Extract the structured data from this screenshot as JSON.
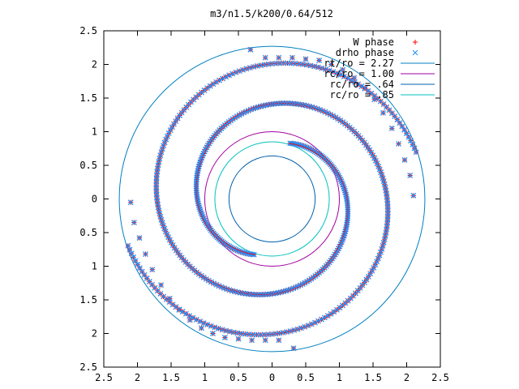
{
  "chart_data": {
    "type": "scatter",
    "title": "m3/n1.5/k200/0.64/512",
    "xlim": [
      -2.5,
      2.5
    ],
    "ylim": [
      -2.5,
      2.5
    ],
    "x_ticks": [
      -2.5,
      -2,
      -1.5,
      -1,
      -0.5,
      0,
      0.5,
      1,
      1.5,
      2,
      2.5
    ],
    "x_tick_labels": [
      "2.5",
      "2",
      "1.5",
      "1",
      "0.5",
      "0",
      "0.5",
      "1",
      "1.5",
      "2",
      "2.5"
    ],
    "y_ticks": [
      2.5,
      2,
      1.5,
      1,
      0.5,
      0,
      -0.5,
      -1,
      -1.5,
      -2,
      -2.5
    ],
    "y_tick_labels": [
      "2.5",
      "2",
      "1.5",
      "1",
      "0.5",
      "0",
      "0.5",
      "1",
      "1.5",
      "2",
      "2.5"
    ],
    "grid": false,
    "legend_position": "top-right",
    "series": [
      {
        "name": "W phase",
        "kind": "points",
        "marker": "plus",
        "color": "#ff0000",
        "spirals": [
          {
            "start_r": 0.87,
            "end_r": 2.25,
            "theta_start_deg": 72,
            "turns": 1.15
          },
          {
            "start_r": 0.87,
            "end_r": 2.25,
            "theta_start_deg": 252,
            "turns": 1.15
          }
        ],
        "outer_points": [
          {
            "x": -0.32,
            "y": 2.22
          },
          {
            "x": -0.1,
            "y": 2.1
          },
          {
            "x": 0.1,
            "y": 2.1
          },
          {
            "x": 0.3,
            "y": 2.1
          },
          {
            "x": 0.5,
            "y": 2.08
          },
          {
            "x": 0.7,
            "y": 2.06
          },
          {
            "x": 0.88,
            "y": 2.0
          },
          {
            "x": 1.05,
            "y": 1.92
          },
          {
            "x": 1.22,
            "y": 1.8
          },
          {
            "x": 1.38,
            "y": 1.65
          },
          {
            "x": 1.52,
            "y": 1.48
          },
          {
            "x": 1.65,
            "y": 1.28
          },
          {
            "x": 1.78,
            "y": 1.05
          },
          {
            "x": 1.88,
            "y": 0.82
          },
          {
            "x": 1.97,
            "y": 0.58
          },
          {
            "x": 2.05,
            "y": 0.35
          },
          {
            "x": 2.1,
            "y": 0.05
          },
          {
            "x": 0.32,
            "y": -2.22
          },
          {
            "x": 0.1,
            "y": -2.1
          },
          {
            "x": -0.1,
            "y": -2.1
          },
          {
            "x": -0.3,
            "y": -2.1
          },
          {
            "x": -0.5,
            "y": -2.08
          },
          {
            "x": -0.7,
            "y": -2.06
          },
          {
            "x": -0.88,
            "y": -2.0
          },
          {
            "x": -1.05,
            "y": -1.92
          },
          {
            "x": -1.22,
            "y": -1.8
          },
          {
            "x": -1.38,
            "y": -1.65
          },
          {
            "x": -1.52,
            "y": -1.48
          },
          {
            "x": -1.65,
            "y": -1.28
          },
          {
            "x": -1.78,
            "y": -1.05
          },
          {
            "x": -1.88,
            "y": -0.82
          },
          {
            "x": -1.97,
            "y": -0.58
          },
          {
            "x": -2.05,
            "y": -0.35
          },
          {
            "x": -2.1,
            "y": -0.05
          }
        ]
      },
      {
        "name": "drho phase",
        "kind": "points",
        "marker": "cross",
        "color": "#1e90ff",
        "follows": "W phase"
      },
      {
        "name": "rt/ro = 2.27",
        "kind": "circle",
        "r": 2.27,
        "color": "#0080c0"
      },
      {
        "name": "rc/ro = 1.00",
        "kind": "circle",
        "r": 1.0,
        "color": "#a000a0"
      },
      {
        "name": "rc/ro = .64",
        "kind": "circle",
        "r": 0.64,
        "color": "#0060b0"
      },
      {
        "name": "rc/ro = .85",
        "kind": "circle",
        "r": 0.85,
        "color": "#00c0c0"
      }
    ]
  }
}
